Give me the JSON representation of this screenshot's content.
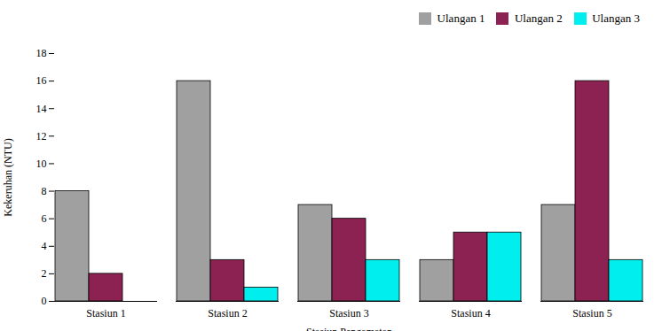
{
  "chart_data": {
    "type": "bar",
    "categories": [
      "Stasiun 1",
      "Stasiun 2",
      "Stasiun 3",
      "Stasiun 4",
      "Stasiun 5"
    ],
    "series": [
      {
        "name": "Ulangan 1",
        "color": "#A0A0A0",
        "values": [
          8,
          16,
          7,
          3,
          7
        ]
      },
      {
        "name": "Ulangan 2",
        "color": "#8B2252",
        "values": [
          2,
          3,
          6,
          5,
          16
        ]
      },
      {
        "name": "Ulangan 3",
        "color": "#00EEEE",
        "values": [
          0,
          1,
          3,
          5,
          3
        ]
      }
    ],
    "xlabel": "Stasiun Pengamatan",
    "ylabel": "Kekeruhan (NTU)",
    "ylim": [
      0,
      18
    ],
    "yticks": [
      0,
      2,
      4,
      6,
      8,
      10,
      12,
      14,
      16,
      18
    ],
    "grid": false,
    "legend": "upper right"
  }
}
